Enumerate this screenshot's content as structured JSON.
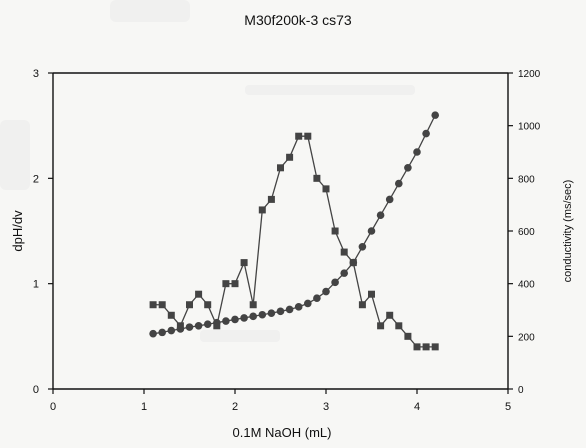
{
  "chart_data": {
    "type": "line",
    "title": "M30f200k-3 cs73",
    "xlabel": "0.1M NaOH (mL)",
    "ylabel_left": "dpH/dv",
    "ylabel_right": "conductivity  (ms/sec)",
    "xlim": [
      0,
      5
    ],
    "ylim_left": [
      0,
      3
    ],
    "ylim_right": [
      0,
      1200
    ],
    "x_ticks": [
      "0",
      "1",
      "2",
      "3",
      "4",
      "5"
    ],
    "y_left_ticks": [
      "0",
      "1",
      "2",
      "3"
    ],
    "y_right_ticks": [
      "0",
      "200",
      "400",
      "600",
      "800",
      "1000",
      "1200"
    ],
    "grid": false,
    "series": [
      {
        "axis": "left",
        "marker": "square",
        "color": "#444444",
        "x": [
          1.1,
          1.2,
          1.3,
          1.4,
          1.5,
          1.6,
          1.7,
          1.8,
          1.9,
          2.0,
          2.1,
          2.2,
          2.3,
          2.4,
          2.5,
          2.6,
          2.7,
          2.8,
          2.9,
          3.0,
          3.1,
          3.2,
          3.3,
          3.4,
          3.5,
          3.6,
          3.7,
          3.8,
          3.9,
          4.0,
          4.1,
          4.2
        ],
        "y": [
          0.8,
          0.8,
          0.7,
          0.6,
          0.8,
          0.9,
          0.8,
          0.6,
          1.0,
          1.0,
          1.2,
          0.8,
          1.7,
          1.8,
          2.1,
          2.2,
          2.4,
          2.4,
          2.0,
          1.9,
          1.5,
          1.3,
          1.2,
          0.8,
          0.9,
          0.6,
          0.7,
          0.6,
          0.5,
          0.4,
          0.4,
          0.4
        ]
      },
      {
        "axis": "right",
        "marker": "circle",
        "color": "#444444",
        "x": [
          1.1,
          1.2,
          1.3,
          1.4,
          1.5,
          1.6,
          1.7,
          1.8,
          1.9,
          2.0,
          2.1,
          2.2,
          2.3,
          2.4,
          2.5,
          2.6,
          2.7,
          2.8,
          2.9,
          3.0,
          3.1,
          3.2,
          3.3,
          3.4,
          3.5,
          3.6,
          3.7,
          3.8,
          3.9,
          4.0,
          4.1,
          4.2
        ],
        "y": [
          210,
          215,
          222,
          228,
          235,
          240,
          246,
          252,
          258,
          264,
          270,
          276,
          282,
          288,
          295,
          302,
          312,
          325,
          345,
          370,
          405,
          440,
          480,
          540,
          600,
          660,
          720,
          780,
          840,
          900,
          970,
          1040
        ]
      }
    ]
  }
}
